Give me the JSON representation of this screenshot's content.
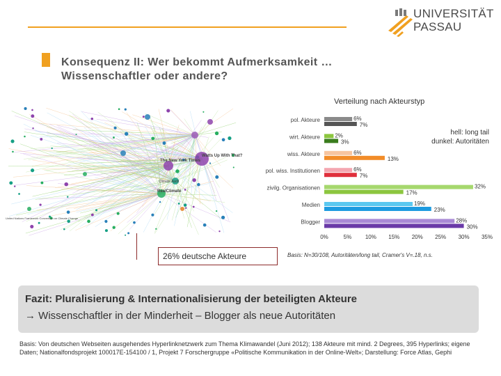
{
  "header": {
    "logo_line1": "UNIVERSITÄT",
    "logo_line2": "PASSAU",
    "title_line1": "Konsequenz II: Wer bekommt Aufmerksamkeit …",
    "title_line2": "Wissenschaftler oder andere?"
  },
  "network": {
    "labels": [
      "The New York Times",
      "Watts Up With That?",
      "RealClimate",
      "Climate Audit",
      "United Nations Framework Convention on Climate Change"
    ],
    "callout": "26% deutsche Akteure"
  },
  "chart_data": {
    "type": "bar",
    "orientation": "horizontal",
    "title": "Verteilung nach Akteurstyp",
    "categories": [
      "pol. Akteure",
      "wirt. Akteure",
      "wiss. Akteure",
      "pol. wiss. Institutionen",
      "zivilg. Organisationen",
      "Medien",
      "Blogger"
    ],
    "series": [
      {
        "name": "long tail",
        "color": "light",
        "values": [
          6,
          2,
          6,
          6,
          32,
          19,
          28
        ]
      },
      {
        "name": "Autoritäten",
        "color": "dark",
        "values": [
          7,
          3,
          13,
          7,
          17,
          23,
          30
        ]
      }
    ],
    "value_labels_long_tail": [
      "6%",
      "2%",
      "6%",
      "6%",
      "32%",
      "19%",
      "28%"
    ],
    "value_labels_autoritaeten": [
      "7%",
      "3%",
      "13%",
      "7%",
      "17%",
      "23%",
      "30%"
    ],
    "category_colors": {
      "light": [
        "#8a8a8a",
        "#8cc63f",
        "#f7c59f",
        "#f4a6b0",
        "#a6d86e",
        "#5bc8f0",
        "#a98ad6"
      ],
      "dark": [
        "#555555",
        "#3a7d1e",
        "#f28c28",
        "#e0303c",
        "#8cc63f",
        "#1e9be0",
        "#6a3aa8"
      ]
    },
    "xlim": [
      0,
      35
    ],
    "xticks": [
      "0%",
      "5%",
      "10%",
      "15%",
      "20%",
      "25%",
      "30%",
      "35%"
    ],
    "legend_line1": "hell: long tail",
    "legend_line2": "dunkel: Autoritäten",
    "legend_position": "top-right",
    "grid": false
  },
  "basis": "Basis: N=30/108, Autoritäten/long tail, Cramer's V=.18, n.s.",
  "fazit": {
    "line1": "Fazit: Pluralisierung & Internationalisierung der beteiligten Akteure",
    "line2": "Wissenschaftler in der Minderheit – Blogger als neue Autoritäten"
  },
  "footer": "Basis: Von deutschen Webseiten ausgehendes Hyperlinknetzwerk zum Thema Klimawandel (Juni 2012); 138 Akteure mit mind. 2 Degrees, 395 Hyperlinks; eigene Daten; Nationalfondsprojekt 100017E-154100 / 1, Projekt 7 Forschergruppe «Politische Kommunikation in der Online-Welt»; Darstellung: Force Atlas, Gephi"
}
